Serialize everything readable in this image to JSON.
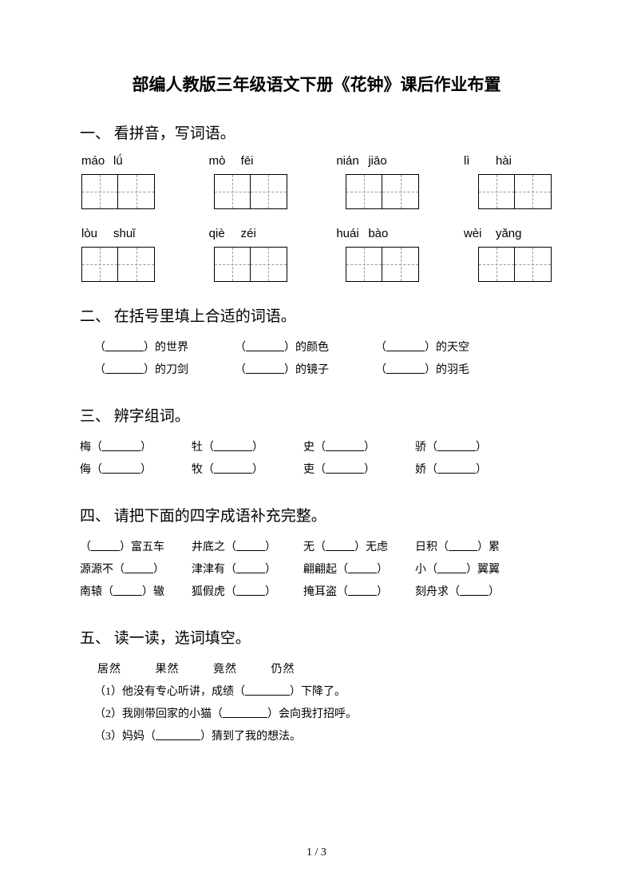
{
  "title": "部编人教版三年级语文下册《花钟》课后作业布置",
  "page_number": "1 / 3",
  "section1": {
    "heading": "一、 看拼音，写词语。",
    "row1": [
      {
        "p1": "máo",
        "p2": "lǘ"
      },
      {
        "p1": "mò",
        "p2": "fēi"
      },
      {
        "p1": "nián",
        "p2": "jiāo"
      },
      {
        "p1": "lì",
        "p2": "hài"
      }
    ],
    "row2": [
      {
        "p1": "lòu",
        "p2": "shuǐ"
      },
      {
        "p1": "qiè",
        "p2": "zéi"
      },
      {
        "p1": "huái",
        "p2": "bào"
      },
      {
        "p1": "wèi",
        "p2": "yǎng"
      }
    ]
  },
  "section2": {
    "heading": "二、 在括号里填上合适的词语。",
    "items": [
      [
        "）的世界",
        "）的颜色",
        "）的天空"
      ],
      [
        "）的刀剑",
        "）的镜子",
        "）的羽毛"
      ]
    ]
  },
  "section3": {
    "heading": "三、 辨字组词。",
    "rows": [
      [
        "梅（",
        "牡（",
        "史（",
        "骄（"
      ],
      [
        "侮（",
        "牧（",
        "吏（",
        "娇（"
      ]
    ]
  },
  "section4": {
    "heading": "四、 请把下面的四字成语补充完整。",
    "rows": [
      [
        {
          "pre": "（",
          "post": "）富五车"
        },
        {
          "pre": "井底之（",
          "post": "）"
        },
        {
          "pre": "无（",
          "post": "）无虑"
        },
        {
          "pre": "日积（",
          "post": "）累"
        }
      ],
      [
        {
          "pre": "源源不（",
          "post": "）"
        },
        {
          "pre": "津津有（",
          "post": "）"
        },
        {
          "pre": "翩翩起（",
          "post": "）"
        },
        {
          "pre": "小（",
          "post": "）翼翼"
        }
      ],
      [
        {
          "pre": "南辕（",
          "post": "）辙"
        },
        {
          "pre": "狐假虎（",
          "post": "）"
        },
        {
          "pre": "掩耳盗（",
          "post": "）"
        },
        {
          "pre": "刻舟求（",
          "post": "）"
        }
      ]
    ]
  },
  "section5": {
    "heading": "五、 读一读，选词填空。",
    "options": [
      "居然",
      "果然",
      "竟然",
      "仍然"
    ],
    "sentences": [
      {
        "pre": "（1）他没有专心听讲，成绩（",
        "post": "）下降了。"
      },
      {
        "pre": "（2）我刚带回家的小猫（",
        "post": "）会向我打招呼。"
      },
      {
        "pre": "（3）妈妈（",
        "post": "）猜到了我的想法。"
      }
    ]
  }
}
